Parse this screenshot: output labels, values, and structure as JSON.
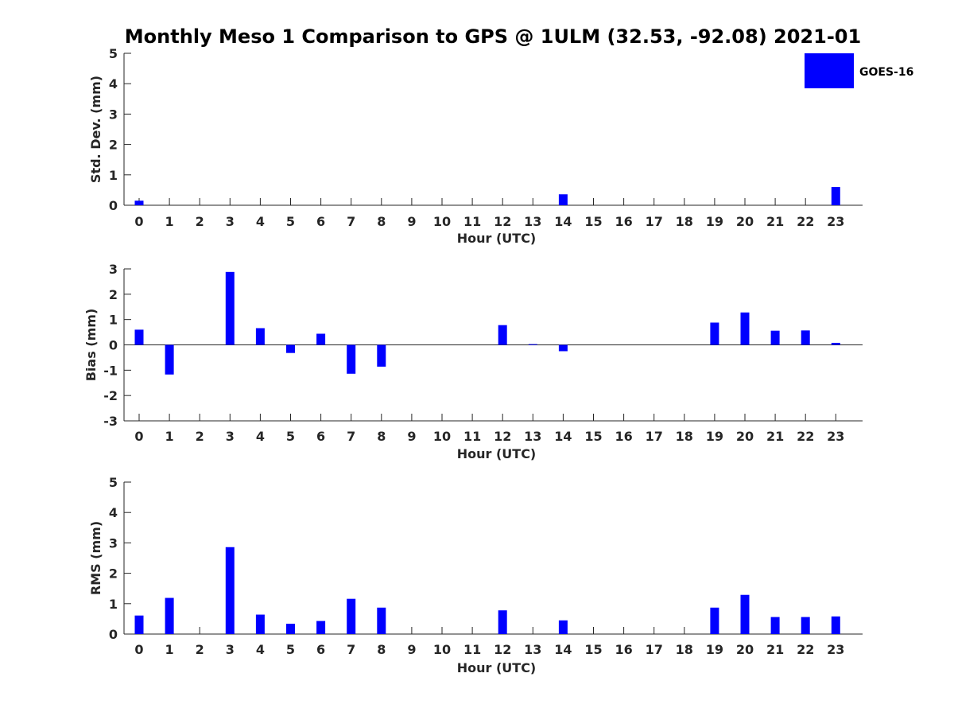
{
  "figure_title": "Monthly Meso 1 Comparison to GPS @ 1ULM (32.53, -92.08) 2021-01",
  "legend": {
    "label": "GOES-16",
    "color": "#0000ff"
  },
  "bar_color": "#0000ff",
  "chart_data": [
    {
      "type": "bar",
      "title": "Monthly Meso 1 Comparison to GPS @ 1ULM (32.53, -92.08) 2021-01",
      "xlabel": "Hour (UTC)",
      "ylabel": "Std. Dev. (mm)",
      "ylim": [
        0,
        5
      ],
      "yticks": [
        "0",
        "1",
        "2",
        "3",
        "4",
        "5"
      ],
      "categories": [
        "0",
        "1",
        "2",
        "3",
        "4",
        "5",
        "6",
        "7",
        "8",
        "9",
        "10",
        "11",
        "12",
        "13",
        "14",
        "15",
        "16",
        "17",
        "18",
        "19",
        "20",
        "21",
        "22",
        "23"
      ],
      "series": [
        {
          "name": "GOES-16",
          "values": [
            0.15,
            0,
            0,
            0,
            0,
            0,
            0,
            0,
            0,
            0,
            0,
            0,
            0,
            0,
            0.36,
            0,
            0,
            0,
            0,
            0,
            0,
            0,
            0,
            0.6
          ]
        }
      ],
      "legend_position": "top-right"
    },
    {
      "type": "bar",
      "xlabel": "Hour (UTC)",
      "ylabel": "Bias (mm)",
      "ylim": [
        -3,
        3
      ],
      "yticks": [
        "-3",
        "-2",
        "-1",
        "0",
        "1",
        "2",
        "3"
      ],
      "categories": [
        "0",
        "1",
        "2",
        "3",
        "4",
        "5",
        "6",
        "7",
        "8",
        "9",
        "10",
        "11",
        "12",
        "13",
        "14",
        "15",
        "16",
        "17",
        "18",
        "19",
        "20",
        "21",
        "22",
        "23"
      ],
      "series": [
        {
          "name": "GOES-16",
          "values": [
            0.6,
            -1.17,
            0,
            2.88,
            0.66,
            -0.32,
            0.44,
            -1.14,
            -0.86,
            0,
            0,
            0,
            0.78,
            0.03,
            -0.25,
            0,
            0,
            0,
            0,
            0.88,
            1.28,
            0.56,
            0.57,
            0.08
          ]
        }
      ]
    },
    {
      "type": "bar",
      "xlabel": "Hour (UTC)",
      "ylabel": "RMS (mm)",
      "ylim": [
        0,
        5
      ],
      "yticks": [
        "0",
        "1",
        "2",
        "3",
        "4",
        "5"
      ],
      "categories": [
        "0",
        "1",
        "2",
        "3",
        "4",
        "5",
        "6",
        "7",
        "8",
        "9",
        "10",
        "11",
        "12",
        "13",
        "14",
        "15",
        "16",
        "17",
        "18",
        "19",
        "20",
        "21",
        "22",
        "23"
      ],
      "series": [
        {
          "name": "GOES-16",
          "values": [
            0.61,
            1.19,
            0,
            2.86,
            0.64,
            0.34,
            0.43,
            1.16,
            0.87,
            0,
            0,
            0,
            0.78,
            0,
            0.45,
            0,
            0,
            0,
            0,
            0.87,
            1.29,
            0.56,
            0.56,
            0.58
          ]
        }
      ]
    }
  ]
}
